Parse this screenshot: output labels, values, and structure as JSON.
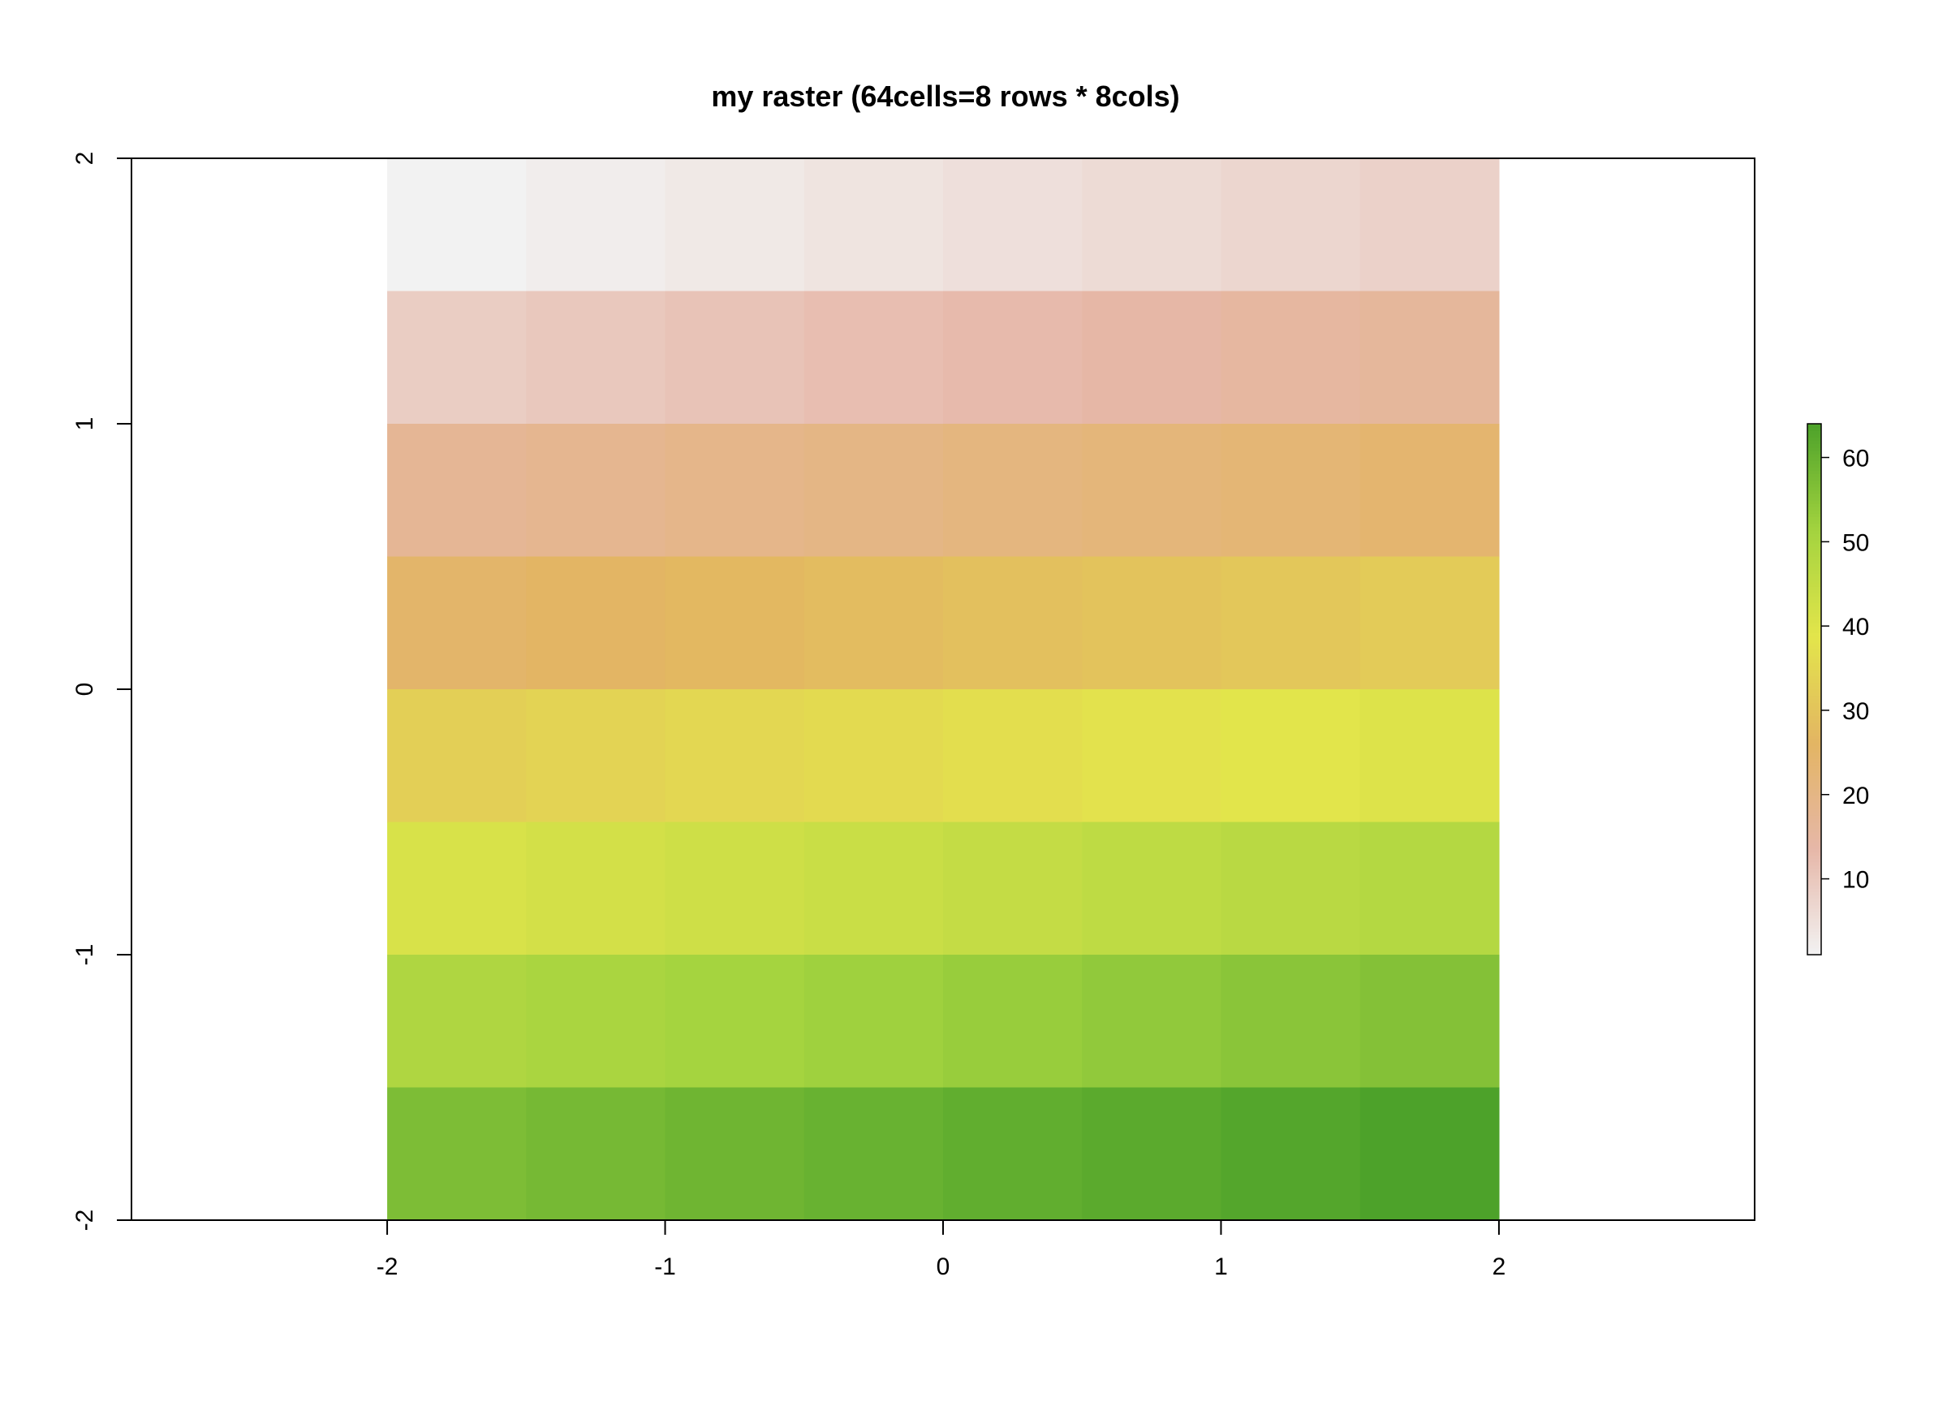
{
  "chart_data": {
    "type": "heatmap",
    "title": "my raster (64cells=8 rows * 8cols)",
    "xlabel": "",
    "ylabel": "",
    "rows": 8,
    "cols": 8,
    "extent": {
      "xmin": -2,
      "xmax": 2,
      "ymin": -2,
      "ymax": 2
    },
    "xlim": [
      -2.92,
      2.92
    ],
    "ylim": [
      -2,
      2
    ],
    "values": [
      [
        1,
        2,
        3,
        4,
        5,
        6,
        7,
        8
      ],
      [
        9,
        10,
        11,
        12,
        13,
        14,
        15,
        16
      ],
      [
        17,
        18,
        19,
        20,
        21,
        22,
        23,
        24
      ],
      [
        25,
        26,
        27,
        28,
        29,
        30,
        31,
        32
      ],
      [
        33,
        34,
        35,
        36,
        37,
        38,
        39,
        40
      ],
      [
        41,
        42,
        43,
        44,
        45,
        46,
        47,
        48
      ],
      [
        49,
        50,
        51,
        52,
        53,
        54,
        55,
        56
      ],
      [
        57,
        58,
        59,
        60,
        61,
        62,
        63,
        64
      ]
    ],
    "x_ticks": [
      "-2",
      "-1",
      "0",
      "1",
      "2"
    ],
    "y_ticks": [
      "-2",
      "-1",
      "0",
      "1",
      "2"
    ],
    "legend": {
      "placement": "right",
      "range": [
        1,
        64
      ],
      "ticks": [
        "10",
        "20",
        "30",
        "40",
        "50",
        "60"
      ]
    },
    "colormap": [
      "#f2f2f2",
      "#e6b7a8",
      "#e3b563",
      "#e3e54b",
      "#a3d33f",
      "#4da22a"
    ],
    "grid": false
  }
}
